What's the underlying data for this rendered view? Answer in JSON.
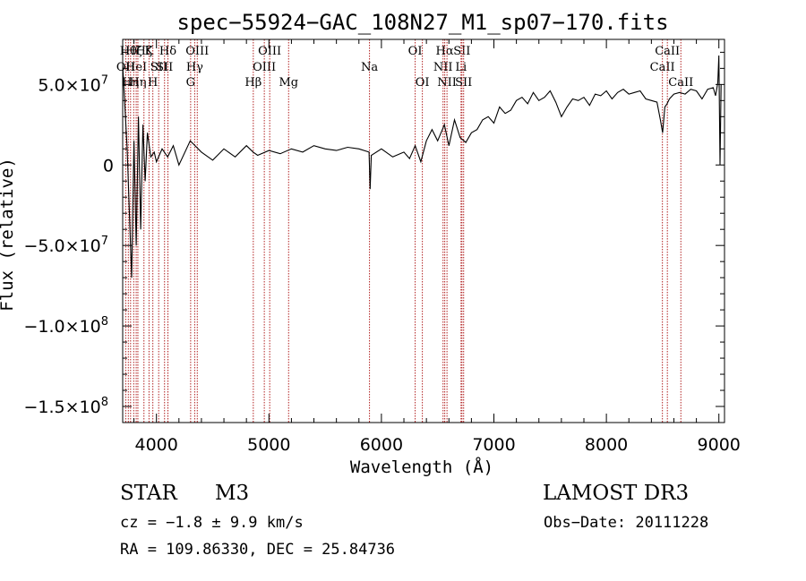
{
  "chart_data": {
    "type": "line",
    "title": "spec−55924−GAC_108N27_M1_sp07−170.fits",
    "xlabel": "Wavelength (Å)",
    "ylabel": "Flux (relative)",
    "xlim": [
      3700,
      9050
    ],
    "ylim": [
      -160000000,
      78000000
    ],
    "x_ticks": [
      {
        "value": 4000,
        "label": "4000"
      },
      {
        "value": 5000,
        "label": "5000"
      },
      {
        "value": 6000,
        "label": "6000"
      },
      {
        "value": 7000,
        "label": "7000"
      },
      {
        "value": 8000,
        "label": "8000"
      },
      {
        "value": 9000,
        "label": "9000"
      }
    ],
    "y_ticks": [
      {
        "value": 50000000,
        "mant": "5.0×10",
        "exp": "7"
      },
      {
        "value": 0,
        "mant": "0",
        "exp": ""
      },
      {
        "value": -50000000,
        "mant": "−5.0×10",
        "exp": "7"
      },
      {
        "value": -100000000,
        "mant": "−1.0×10",
        "exp": "8"
      },
      {
        "value": -150000000,
        "mant": "−1.5×10",
        "exp": "8"
      }
    ],
    "series": [
      {
        "name": "spectrum",
        "x": [
          3700,
          3740,
          3760,
          3780,
          3800,
          3820,
          3840,
          3860,
          3880,
          3900,
          3920,
          3950,
          3980,
          4000,
          4050,
          4100,
          4150,
          4200,
          4300,
          4400,
          4500,
          4600,
          4700,
          4800,
          4860,
          4900,
          5000,
          5100,
          5200,
          5300,
          5400,
          5500,
          5600,
          5700,
          5800,
          5890,
          5900,
          5910,
          6000,
          6100,
          6200,
          6250,
          6300,
          6350,
          6400,
          6450,
          6500,
          6560,
          6600,
          6650,
          6700,
          6750,
          6800,
          6850,
          6900,
          6950,
          7000,
          7050,
          7100,
          7150,
          7200,
          7250,
          7300,
          7350,
          7400,
          7450,
          7500,
          7550,
          7600,
          7650,
          7700,
          7750,
          7800,
          7850,
          7900,
          7950,
          8000,
          8050,
          8100,
          8150,
          8200,
          8250,
          8300,
          8350,
          8400,
          8450,
          8480,
          8500,
          8520,
          8540,
          8560,
          8600,
          8650,
          8700,
          8750,
          8800,
          8850,
          8900,
          8950,
          8970,
          8990,
          9000,
          9010,
          9020
        ],
        "y": [
          62000000,
          10000000,
          -30000000,
          -70000000,
          15000000,
          -50000000,
          30000000,
          -40000000,
          25000000,
          -10000000,
          20000000,
          5000000,
          8000000,
          2000000,
          10000000,
          5000000,
          12000000,
          0,
          15000000,
          8000000,
          3000000,
          10000000,
          5000000,
          12000000,
          8000000,
          6000000,
          9000000,
          7000000,
          10000000,
          8000000,
          12000000,
          10000000,
          9000000,
          11000000,
          10000000,
          8000000,
          -15000000,
          6000000,
          10000000,
          5000000,
          8000000,
          4000000,
          12000000,
          2000000,
          15000000,
          22000000,
          15000000,
          25000000,
          12000000,
          28000000,
          17000000,
          14000000,
          20000000,
          22000000,
          28000000,
          30000000,
          26000000,
          36000000,
          32000000,
          34000000,
          40000000,
          42000000,
          38000000,
          45000000,
          40000000,
          42000000,
          46000000,
          39000000,
          30000000,
          36000000,
          41000000,
          40000000,
          42000000,
          37000000,
          44000000,
          43000000,
          46000000,
          41000000,
          45000000,
          47000000,
          44000000,
          45000000,
          46000000,
          41000000,
          40000000,
          39000000,
          28000000,
          20000000,
          36000000,
          38000000,
          41000000,
          44000000,
          45000000,
          44000000,
          47000000,
          46000000,
          41000000,
          47000000,
          48000000,
          43000000,
          51000000,
          68000000,
          0,
          50000000
        ]
      }
    ],
    "lines": [
      {
        "wl": 3727,
        "label": "OII",
        "row": 2
      },
      {
        "wl": 3750,
        "label": "Hθ",
        "row": 1
      },
      {
        "wl": 3770,
        "label": "Hη",
        "row": 3
      },
      {
        "wl": 3798,
        "label": "Hζ",
        "row": 1
      },
      {
        "wl": 3820,
        "label": "HeI",
        "row": 2
      },
      {
        "wl": 3835,
        "label": "Hη",
        "row": 3
      },
      {
        "wl": 3889,
        "label": "Hζ",
        "row": 1
      },
      {
        "wl": 3934,
        "label": "K",
        "row": 1
      },
      {
        "wl": 3968,
        "label": "H",
        "row": 3
      },
      {
        "wl": 4020,
        "label": "SII",
        "row": 2
      },
      {
        "wl": 4072,
        "label": "SII",
        "row": 2
      },
      {
        "wl": 4102,
        "label": "Hδ",
        "row": 1
      },
      {
        "wl": 4304,
        "label": "G",
        "row": 3
      },
      {
        "wl": 4340,
        "label": "Hγ",
        "row": 2
      },
      {
        "wl": 4363,
        "label": "OIII",
        "row": 1
      },
      {
        "wl": 4861,
        "label": "Hβ",
        "row": 3
      },
      {
        "wl": 4959,
        "label": "OIII",
        "row": 2
      },
      {
        "wl": 5007,
        "label": "OIII",
        "row": 1
      },
      {
        "wl": 5175,
        "label": "Mg",
        "row": 3
      },
      {
        "wl": 5894,
        "label": "Na",
        "row": 2
      },
      {
        "wl": 6300,
        "label": "OI",
        "row": 1
      },
      {
        "wl": 6364,
        "label": "OI",
        "row": 3
      },
      {
        "wl": 6548,
        "label": "NII",
        "row": 2
      },
      {
        "wl": 6563,
        "label": "Hα",
        "row": 1
      },
      {
        "wl": 6583,
        "label": "NII",
        "row": 3
      },
      {
        "wl": 6708,
        "label": "Li",
        "row": 2
      },
      {
        "wl": 6716,
        "label": "SII",
        "row": 1
      },
      {
        "wl": 6731,
        "label": "SII",
        "row": 3
      },
      {
        "wl": 8498,
        "label": "CaII",
        "row": 2
      },
      {
        "wl": 8542,
        "label": "CaII",
        "row": 1
      },
      {
        "wl": 8662,
        "label": "CaII",
        "row": 3
      }
    ]
  },
  "info": {
    "class": "STAR",
    "subclass": "M3",
    "survey": "LAMOST DR3",
    "cz": "cz = −1.8 ± 9.9 km/s",
    "obs_date": "Obs−Date: 20111228",
    "coords": "RA = 109.86330, DEC =  25.84736"
  },
  "colors": {
    "line": "#000000",
    "marker": "#b22222"
  }
}
